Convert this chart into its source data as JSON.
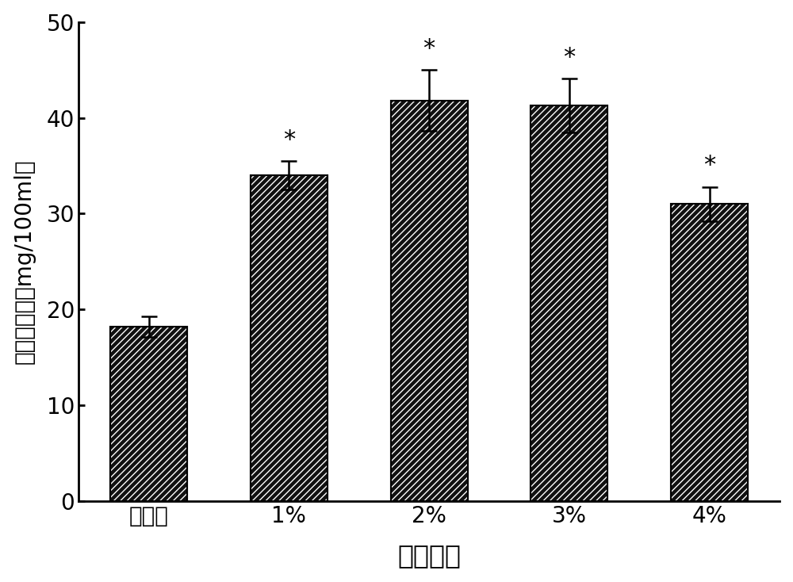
{
  "categories": [
    "对照组",
    "1%",
    "2%",
    "3%",
    "4%"
  ],
  "values": [
    18.2,
    34.0,
    41.8,
    41.3,
    31.0
  ],
  "errors": [
    1.1,
    1.5,
    3.2,
    2.8,
    1.8
  ],
  "xlabel": "油脂处理",
  "ylabel": "总三萟含量（mg/100ml）",
  "ylim": [
    0,
    50
  ],
  "yticks": [
    0,
    10,
    20,
    30,
    40,
    50
  ],
  "bar_facecolor": "#111111",
  "hatch": "////",
  "significance": [
    false,
    true,
    true,
    true,
    true
  ],
  "significance_symbol": "*",
  "bar_width": 0.55,
  "figsize": [
    10.0,
    7.34
  ],
  "dpi": 100,
  "background_color": "#ffffff",
  "ylabel_fontsize": 20,
  "xlabel_fontsize": 24,
  "tick_fontsize": 20,
  "sig_fontsize": 22,
  "spine_linewidth": 2.0
}
